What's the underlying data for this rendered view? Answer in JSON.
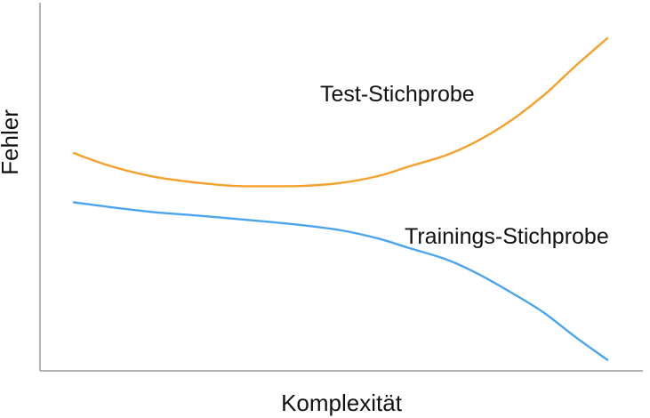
{
  "chart_data": {
    "type": "line",
    "title": "",
    "xlabel": "Komplexität",
    "ylabel": "Fehler",
    "xlim": [
      0,
      1
    ],
    "ylim": [
      0,
      1
    ],
    "grid": false,
    "legend": "inline labels",
    "series": [
      {
        "name": "Test-Stichprobe",
        "color": "#f5a02a",
        "x": [
          0.0,
          0.07,
          0.15,
          0.23,
          0.3,
          0.37,
          0.43,
          0.5,
          0.57,
          0.63,
          0.7,
          0.76,
          0.82,
          0.88,
          0.94,
          1.0
        ],
        "y": [
          0.65,
          0.61,
          0.578,
          0.56,
          0.55,
          0.549,
          0.55,
          0.559,
          0.58,
          0.61,
          0.645,
          0.69,
          0.75,
          0.825,
          0.915,
          1.0
        ]
      },
      {
        "name": "Trainings-Stichprobe",
        "color": "#4aa4ee",
        "x": [
          0.0,
          0.07,
          0.15,
          0.23,
          0.3,
          0.37,
          0.43,
          0.5,
          0.57,
          0.63,
          0.7,
          0.76,
          0.82,
          0.88,
          0.94,
          1.0
        ],
        "y": [
          0.5,
          0.485,
          0.47,
          0.46,
          0.45,
          0.44,
          0.43,
          0.415,
          0.39,
          0.36,
          0.325,
          0.28,
          0.225,
          0.165,
          0.09,
          0.02
        ]
      }
    ]
  }
}
